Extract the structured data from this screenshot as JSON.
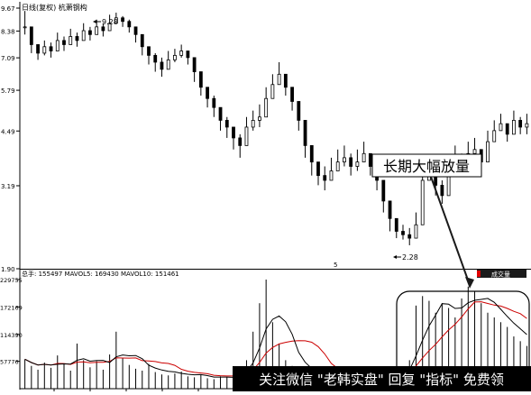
{
  "header": {
    "title": "日线(复权) 杭萧钢构"
  },
  "annotation": {
    "text": "长期大幅放量",
    "high_marker": "9.28",
    "low_marker": "2.28"
  },
  "volume_panel": {
    "legend": "总手: 155497 MAVOL5: 169430 MAVOL10: 151461",
    "indicator_button": "成交量"
  },
  "watermark": {
    "text": "关注微信 \"老韩实盘\" 回复 \"指标\" 免费领"
  },
  "colors": {
    "price_bars": "#000000",
    "volume_bars": "#000000",
    "mavol5": "#000000",
    "mavol10": "#cc0000",
    "annotation_arrow": "#1a1a1a",
    "highlight_box": "#000000",
    "watermark_bg": "#000000",
    "watermark_text": "#ffffff",
    "button_bg": "#1a1a1a",
    "button_text": "#ffffff"
  },
  "chart_data": [
    {
      "type": "ohlc",
      "scale": "log",
      "ylim": [
        1.9,
        9.67
      ],
      "y_ticks": [
        "9.67",
        "8.38",
        "7.09",
        "5.79",
        "4.49",
        "3.19",
        "1.90"
      ],
      "y_tick_values": [
        9.67,
        8.38,
        7.09,
        5.79,
        4.49,
        3.19,
        1.9
      ],
      "x_label_marker": "5",
      "close": [
        8.6,
        7.7,
        7.3,
        7.6,
        7.4,
        7.9,
        7.7,
        8.1,
        7.9,
        8.4,
        8.2,
        8.6,
        8.4,
        8.8,
        9.1,
        8.9,
        8.6,
        8.2,
        7.6,
        7.2,
        6.9,
        6.6,
        7.0,
        7.2,
        7.4,
        7.1,
        6.5,
        5.9,
        5.5,
        5.2,
        4.8,
        4.6,
        4.3,
        4.1,
        4.6,
        4.8,
        4.9,
        5.5,
        6.0,
        6.4,
        5.9,
        5.4,
        4.8,
        4.1,
        3.7,
        3.4,
        3.3,
        3.5,
        3.7,
        3.8,
        3.6,
        3.7,
        3.9,
        3.6,
        3.3,
        2.9,
        2.6,
        2.4,
        2.35,
        2.3,
        2.5,
        3.3,
        3.5,
        3.2,
        3.0,
        3.4,
        3.8,
        3.6,
        3.9,
        4.0,
        3.7,
        4.2,
        4.5,
        4.7,
        4.4,
        4.8,
        4.6,
        4.7
      ],
      "high": [
        9.5,
        8.1,
        7.7,
        7.9,
        7.8,
        8.3,
        8.1,
        8.5,
        8.3,
        8.8,
        8.6,
        9.0,
        8.8,
        9.28,
        9.4,
        9.2,
        9.0,
        8.5,
        8.0,
        7.6,
        7.3,
        7.1,
        7.4,
        7.5,
        7.7,
        7.4,
        6.9,
        6.3,
        5.9,
        5.6,
        5.1,
        4.9,
        4.6,
        4.4,
        4.9,
        5.1,
        5.3,
        5.9,
        6.4,
        6.9,
        6.3,
        5.8,
        5.2,
        4.5,
        4.0,
        3.7,
        3.6,
        3.8,
        4.0,
        4.1,
        3.9,
        4.0,
        4.2,
        3.9,
        3.6,
        3.2,
        2.8,
        2.6,
        2.5,
        2.45,
        2.7,
        3.6,
        3.8,
        3.5,
        3.3,
        3.7,
        4.1,
        3.9,
        4.2,
        4.3,
        4.0,
        4.5,
        4.8,
        5.0,
        4.7,
        5.1,
        4.9,
        5.0
      ],
      "low": [
        8.2,
        7.3,
        7.0,
        7.2,
        7.1,
        7.5,
        7.4,
        7.8,
        7.6,
        8.0,
        7.9,
        8.3,
        8.1,
        8.5,
        8.8,
        8.6,
        8.3,
        7.8,
        7.2,
        6.8,
        6.5,
        6.3,
        6.7,
        6.9,
        7.1,
        6.8,
        6.1,
        5.6,
        5.2,
        4.9,
        4.5,
        4.3,
        4.0,
        3.8,
        4.3,
        4.5,
        4.6,
        5.2,
        5.7,
        6.1,
        5.6,
        5.1,
        4.5,
        3.8,
        3.4,
        3.2,
        3.1,
        3.3,
        3.5,
        3.6,
        3.4,
        3.5,
        3.7,
        3.4,
        3.1,
        2.7,
        2.4,
        2.3,
        2.28,
        2.2,
        2.35,
        3.1,
        3.3,
        3.0,
        2.85,
        3.2,
        3.6,
        3.4,
        3.7,
        3.8,
        3.5,
        4.0,
        4.3,
        4.5,
        4.2,
        4.6,
        4.4,
        4.4
      ]
    },
    {
      "type": "bar",
      "ylim": [
        0,
        229755
      ],
      "y_ticks": [
        "229755",
        "172169",
        "114390",
        "57776"
      ],
      "y_tick_values": [
        229755,
        172169,
        114390,
        57776
      ],
      "series": [
        {
          "name": "总手",
          "values": [
            62000,
            48000,
            40000,
            55000,
            44000,
            70000,
            52000,
            38000,
            95000,
            60000,
            45000,
            58000,
            40000,
            72000,
            120000,
            65000,
            50000,
            42000,
            38000,
            52000,
            35000,
            30000,
            28000,
            32000,
            36000,
            26000,
            24000,
            30000,
            22000,
            20000,
            26000,
            24000,
            28000,
            40000,
            60000,
            120000,
            180000,
            229755,
            140000,
            95000,
            60000,
            48000,
            40000,
            35000,
            30000,
            28000,
            26000,
            30000,
            32000,
            28000,
            24000,
            26000,
            30000,
            28000,
            22000,
            26000,
            30000,
            36000,
            45000,
            60000,
            175000,
            195000,
            185000,
            160000,
            180000,
            170000,
            150000,
            190000,
            215000,
            205000,
            180000,
            160000,
            150000,
            140000,
            130000,
            110000,
            100000,
            90000
          ]
        },
        {
          "name": "MAVOL5",
          "values": []
        },
        {
          "name": "MAVOL10",
          "values": []
        }
      ]
    }
  ]
}
